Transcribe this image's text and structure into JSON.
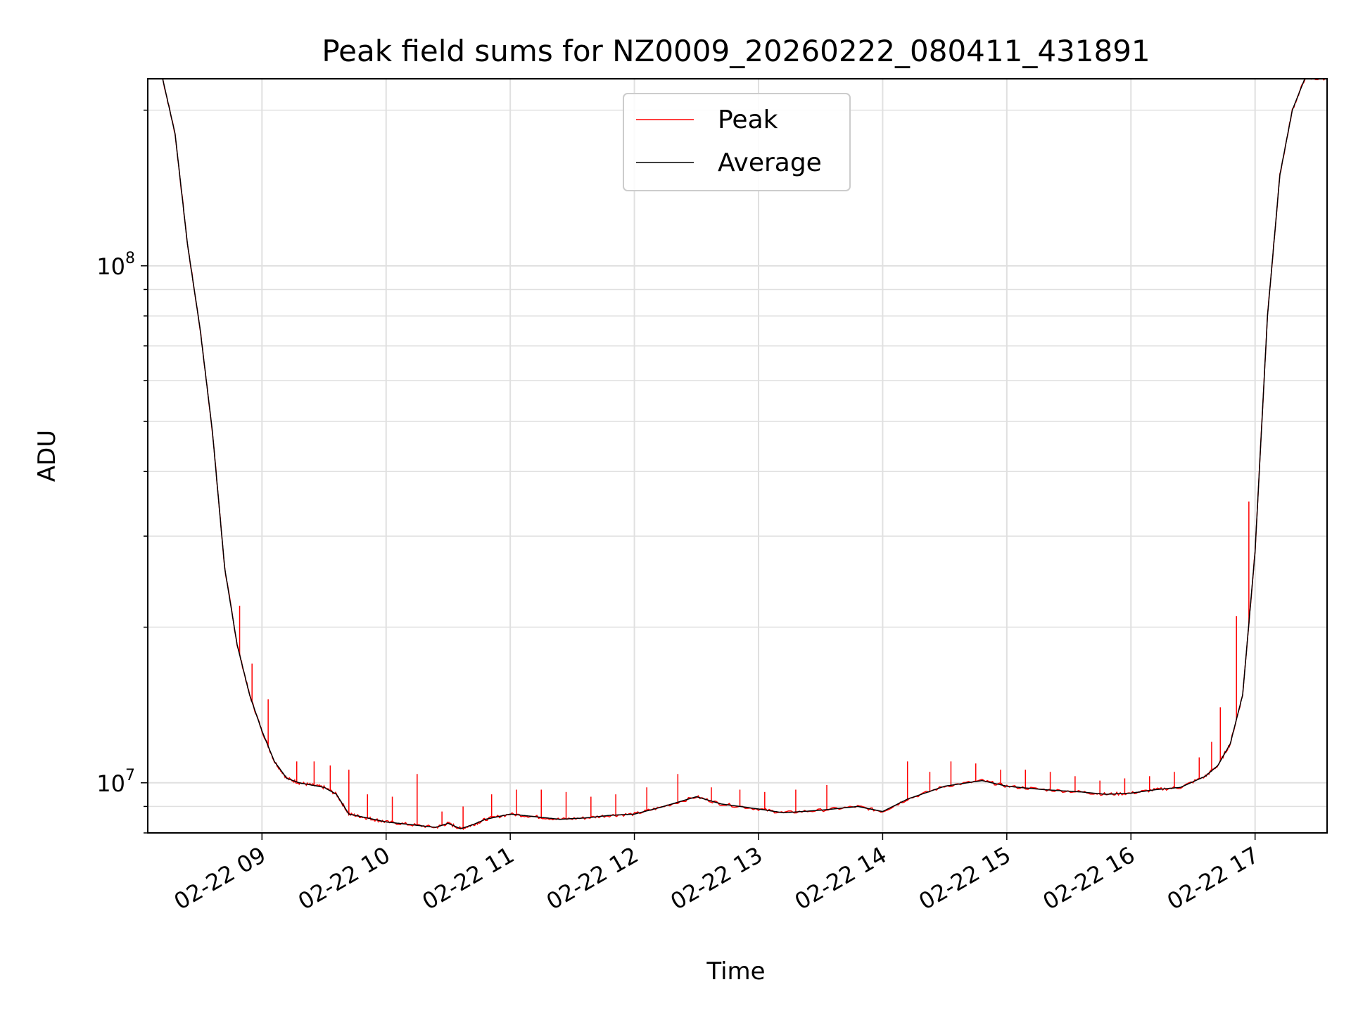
{
  "chart_data": {
    "type": "line",
    "title": "Peak field sums for NZ0009_20260222_080411_431891",
    "xlabel": "Time",
    "ylabel": "ADU",
    "y_scale": "log",
    "y_tick_major": [
      {
        "value": 10000000,
        "base": "10",
        "exp": "7"
      },
      {
        "value": 100000000,
        "base": "10",
        "exp": "8"
      }
    ],
    "ylim": [
      8000000,
      230000000
    ],
    "x_ticks": [
      {
        "label": "02-22 09",
        "value": 9
      },
      {
        "label": "02-22 10",
        "value": 10
      },
      {
        "label": "02-22 11",
        "value": 11
      },
      {
        "label": "02-22 12",
        "value": 12
      },
      {
        "label": "02-22 13",
        "value": 13
      },
      {
        "label": "02-22 14",
        "value": 14
      },
      {
        "label": "02-22 15",
        "value": 15
      },
      {
        "label": "02-22 16",
        "value": 16
      },
      {
        "label": "02-22 17",
        "value": 17
      }
    ],
    "x_unit": "hour of 2026-02-22",
    "xlim": [
      8.08,
      17.58
    ],
    "grid": true,
    "legend_position": "top-center",
    "series": [
      {
        "name": "Peak",
        "color": "#ff0000",
        "style": "spiky",
        "x": [
          8.2,
          8.3,
          8.4,
          8.5,
          8.6,
          8.7,
          8.8,
          8.9,
          9.0,
          9.1,
          9.2,
          9.3,
          9.4,
          9.5,
          9.6,
          9.7,
          9.8,
          9.9,
          10.0,
          10.2,
          10.4,
          10.5,
          10.6,
          10.7,
          10.8,
          11.0,
          11.2,
          11.4,
          11.6,
          11.8,
          12.0,
          12.2,
          12.5,
          12.7,
          13.0,
          13.2,
          13.5,
          13.8,
          14.0,
          14.2,
          14.5,
          14.8,
          15.0,
          15.3,
          15.6,
          15.8,
          16.0,
          16.2,
          16.4,
          16.6,
          16.7,
          16.8,
          16.9,
          17.0,
          17.1,
          17.2,
          17.3,
          17.4,
          17.58
        ],
        "y": [
          230000000,
          180000000,
          110000000,
          76000000,
          48000000,
          26000000,
          18500000,
          14800000,
          12600000,
          11000000,
          10200000,
          10000000,
          9900000,
          9800000,
          9500000,
          8700000,
          8600000,
          8500000,
          8400000,
          8300000,
          8200000,
          8350000,
          8150000,
          8300000,
          8500000,
          8700000,
          8600000,
          8500000,
          8550000,
          8650000,
          8700000,
          8950000,
          9400000,
          9100000,
          8900000,
          8750000,
          8850000,
          9000000,
          8800000,
          9300000,
          9850000,
          10100000,
          9850000,
          9700000,
          9600000,
          9500000,
          9550000,
          9700000,
          9800000,
          10300000,
          10800000,
          11900000,
          14800000,
          28000000,
          80000000,
          150000000,
          200000000,
          230000000,
          230000000
        ],
        "spikes": [
          [
            8.82,
            22000000
          ],
          [
            8.92,
            17000000
          ],
          [
            9.05,
            14500000
          ],
          [
            9.28,
            11000000
          ],
          [
            9.42,
            11000000
          ],
          [
            9.55,
            10800000
          ],
          [
            9.7,
            10600000
          ],
          [
            9.85,
            9500000
          ],
          [
            10.05,
            9400000
          ],
          [
            10.25,
            10400000
          ],
          [
            10.45,
            8800000
          ],
          [
            10.62,
            9000000
          ],
          [
            10.85,
            9500000
          ],
          [
            11.05,
            9700000
          ],
          [
            11.25,
            9700000
          ],
          [
            11.45,
            9600000
          ],
          [
            11.65,
            9400000
          ],
          [
            11.85,
            9500000
          ],
          [
            12.1,
            9800000
          ],
          [
            12.35,
            10400000
          ],
          [
            12.62,
            9800000
          ],
          [
            12.85,
            9700000
          ],
          [
            13.05,
            9600000
          ],
          [
            13.3,
            9700000
          ],
          [
            13.55,
            9900000
          ],
          [
            14.2,
            11000000
          ],
          [
            14.38,
            10500000
          ],
          [
            14.55,
            11000000
          ],
          [
            14.75,
            10900000
          ],
          [
            14.95,
            10600000
          ],
          [
            15.15,
            10600000
          ],
          [
            15.35,
            10500000
          ],
          [
            15.55,
            10300000
          ],
          [
            15.75,
            10100000
          ],
          [
            15.95,
            10200000
          ],
          [
            16.15,
            10300000
          ],
          [
            16.35,
            10500000
          ],
          [
            16.55,
            11200000
          ],
          [
            16.65,
            12000000
          ],
          [
            16.72,
            14000000
          ],
          [
            16.85,
            21000000
          ],
          [
            16.95,
            35000000
          ]
        ]
      },
      {
        "name": "Average",
        "color": "#000000",
        "style": "smooth",
        "x": [
          8.2,
          8.3,
          8.4,
          8.5,
          8.6,
          8.7,
          8.8,
          8.9,
          9.0,
          9.1,
          9.2,
          9.3,
          9.4,
          9.5,
          9.6,
          9.7,
          9.8,
          9.9,
          10.0,
          10.2,
          10.4,
          10.5,
          10.6,
          10.7,
          10.8,
          11.0,
          11.2,
          11.4,
          11.6,
          11.8,
          12.0,
          12.2,
          12.5,
          12.7,
          13.0,
          13.2,
          13.5,
          13.8,
          14.0,
          14.2,
          14.5,
          14.8,
          15.0,
          15.3,
          15.6,
          15.8,
          16.0,
          16.2,
          16.4,
          16.6,
          16.7,
          16.8,
          16.9,
          17.0,
          17.1,
          17.2,
          17.3,
          17.4,
          17.58
        ],
        "y": [
          230000000,
          180000000,
          110000000,
          76000000,
          48000000,
          26000000,
          18500000,
          14800000,
          12600000,
          11000000,
          10200000,
          10000000,
          9900000,
          9800000,
          9500000,
          8700000,
          8600000,
          8500000,
          8400000,
          8300000,
          8200000,
          8350000,
          8150000,
          8300000,
          8500000,
          8700000,
          8600000,
          8500000,
          8550000,
          8650000,
          8700000,
          8950000,
          9400000,
          9100000,
          8900000,
          8750000,
          8850000,
          9000000,
          8800000,
          9300000,
          9850000,
          10100000,
          9850000,
          9700000,
          9600000,
          9500000,
          9550000,
          9700000,
          9800000,
          10300000,
          10800000,
          11900000,
          14800000,
          28000000,
          80000000,
          150000000,
          200000000,
          230000000,
          230000000
        ]
      }
    ]
  }
}
